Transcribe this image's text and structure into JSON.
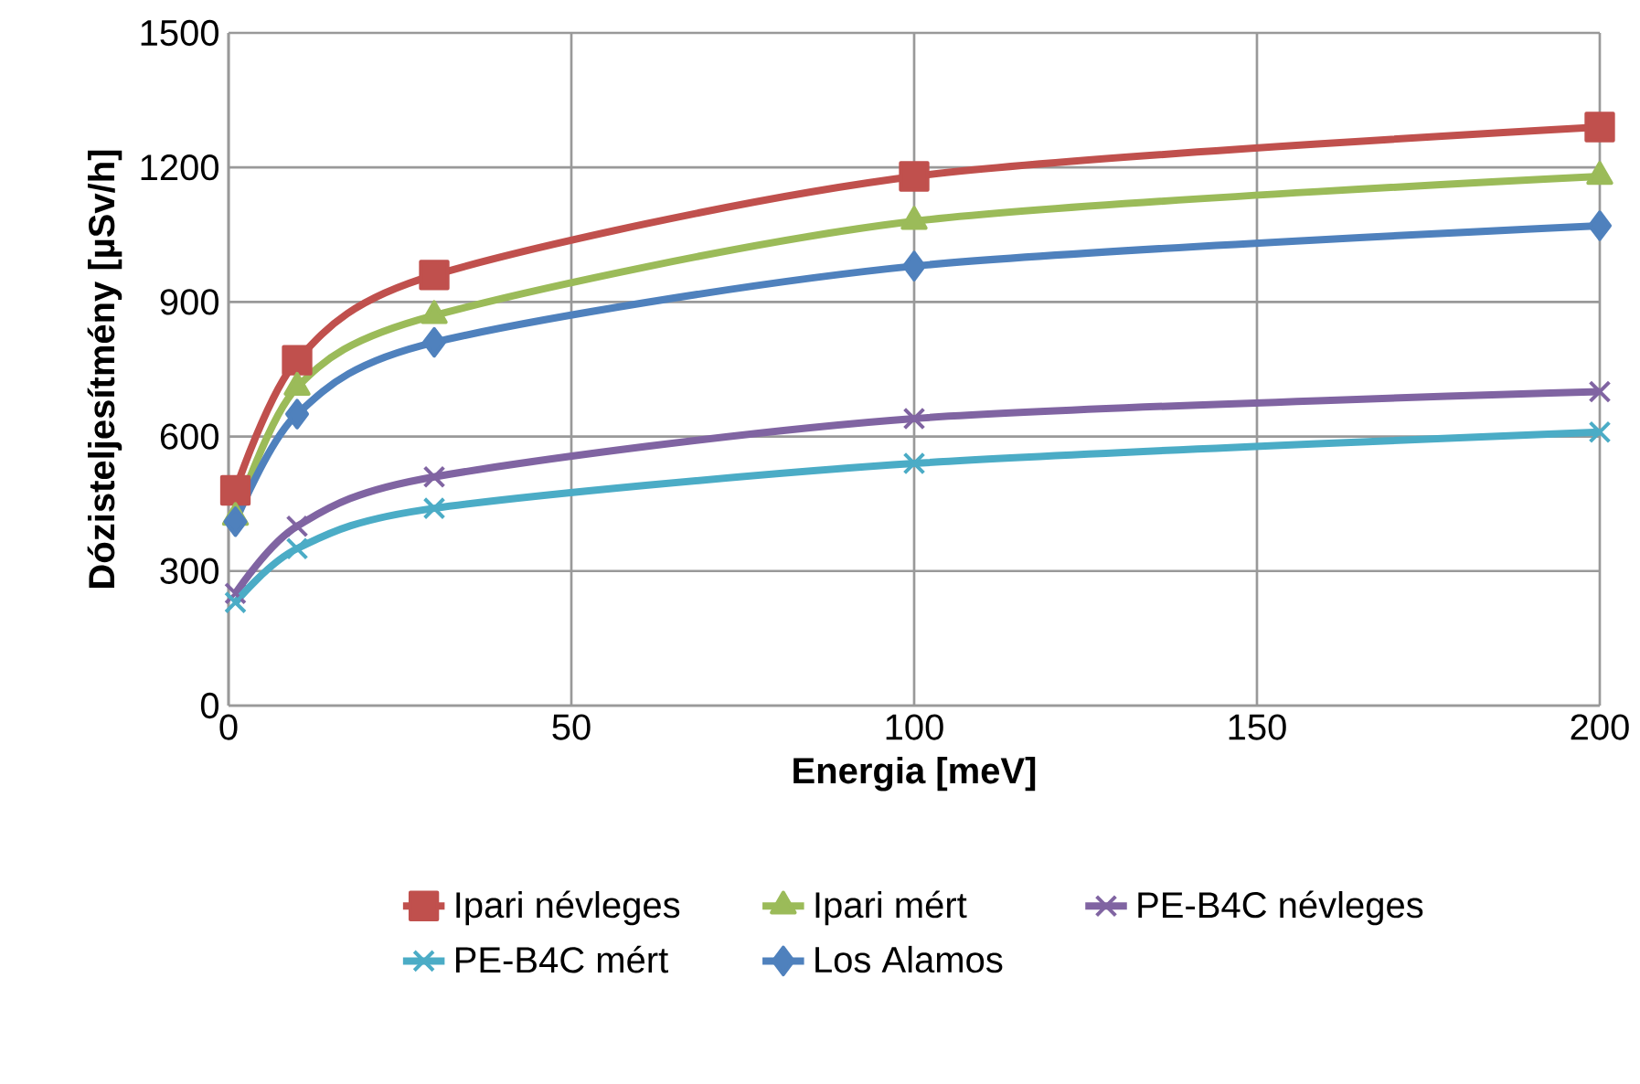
{
  "chart_data": {
    "type": "line",
    "xlabel": "Energia [meV]",
    "ylabel": "Dózisteljesítmény [µSv/h]",
    "x": [
      1,
      10,
      30,
      100,
      200
    ],
    "series": [
      {
        "name": "Ipari névleges",
        "color": "#c0504d",
        "marker": "square",
        "values": [
          480,
          770,
          960,
          1180,
          1290
        ]
      },
      {
        "name": "Ipari mért",
        "color": "#9bbb59",
        "marker": "triangle",
        "values": [
          420,
          710,
          870,
          1080,
          1180
        ]
      },
      {
        "name": "PE-B4C névleges",
        "color": "#8064a2",
        "marker": "cross",
        "values": [
          250,
          400,
          510,
          640,
          700
        ]
      },
      {
        "name": "PE-B4C mért",
        "color": "#4bacc6",
        "marker": "cross",
        "values": [
          230,
          350,
          440,
          540,
          610
        ]
      },
      {
        "name": "Los Alamos",
        "color": "#4f81bd",
        "marker": "diamond",
        "values": [
          410,
          650,
          810,
          980,
          1070
        ]
      }
    ],
    "xlim": [
      0,
      200
    ],
    "ylim": [
      0,
      1500
    ],
    "xticks": [
      0,
      50,
      100,
      150,
      200
    ],
    "yticks": [
      0,
      300,
      600,
      900,
      1200,
      1500
    ],
    "grid": true,
    "legend": "bottom",
    "line_style": "solid"
  }
}
